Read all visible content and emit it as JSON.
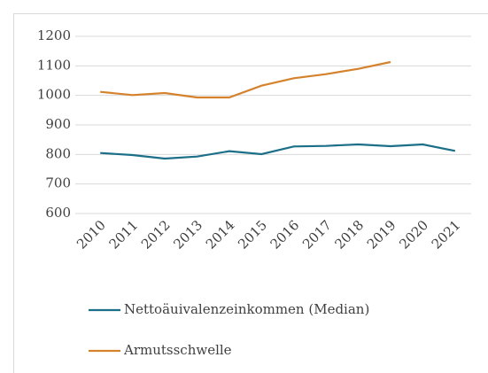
{
  "chart_data": {
    "type": "line",
    "categories": [
      "2010",
      "2011",
      "2012",
      "2013",
      "2014",
      "2015",
      "2016",
      "2017",
      "2018",
      "2019",
      "2020",
      "2021"
    ],
    "series": [
      {
        "name": "Nettoäuivalenzeinkommen (Median)",
        "color": "#1b6f88",
        "values": [
          805,
          798,
          786,
          793,
          811,
          801,
          827,
          829,
          834,
          828,
          834,
          812
        ]
      },
      {
        "name": "Armutsschwelle",
        "color": "#d5822c",
        "values": [
          1012,
          1001,
          1008,
          993,
          993,
          1033,
          1058,
          1072,
          1090,
          1113,
          null,
          null
        ]
      }
    ],
    "ylim": [
      600,
      1200
    ],
    "yticks": [
      600,
      700,
      800,
      900,
      1000,
      1100,
      1200
    ],
    "grid": true,
    "legend": "bottom"
  }
}
